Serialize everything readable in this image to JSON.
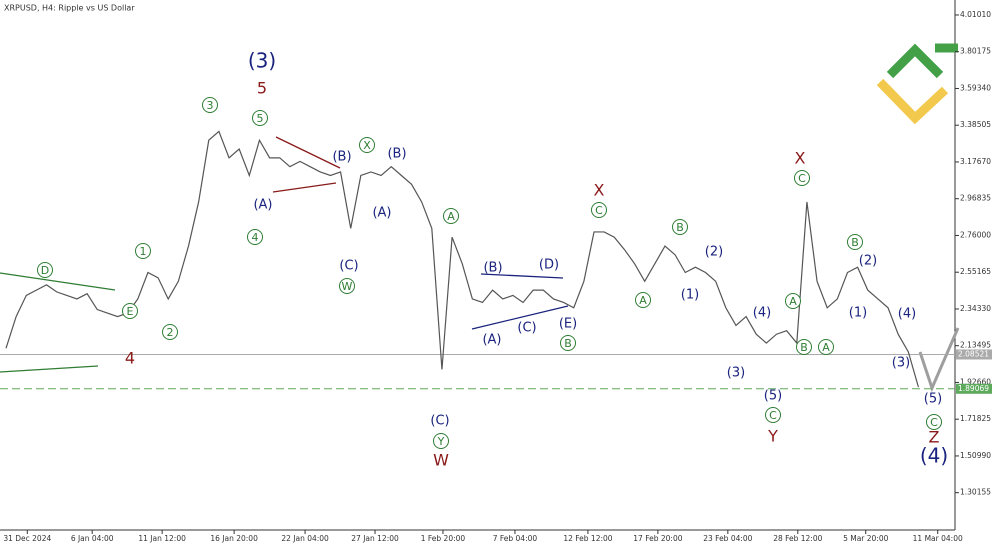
{
  "chart_data": {
    "type": "line",
    "title": "XRPUSD, H4:  Ripple vs US Dollar",
    "values": [
      2.12,
      2.3,
      2.42,
      2.45,
      2.48,
      2.44,
      2.42,
      2.4,
      2.43,
      2.34,
      2.32,
      2.3,
      2.32,
      2.4,
      2.55,
      2.52,
      2.4,
      2.5,
      2.7,
      2.95,
      3.3,
      3.35,
      3.2,
      3.25,
      3.1,
      3.3,
      3.2,
      3.2,
      3.15,
      3.18,
      3.15,
      3.12,
      3.1,
      3.12,
      2.8,
      3.1,
      3.12,
      3.1,
      3.15,
      3.1,
      3.05,
      2.95,
      2.8,
      2.0,
      2.75,
      2.6,
      2.4,
      2.38,
      2.45,
      2.4,
      2.42,
      2.38,
      2.45,
      2.45,
      2.4,
      2.38,
      2.35,
      2.5,
      2.78,
      2.78,
      2.75,
      2.68,
      2.6,
      2.5,
      2.6,
      2.7,
      2.65,
      2.55,
      2.58,
      2.55,
      2.5,
      2.35,
      2.25,
      2.3,
      2.2,
      2.15,
      2.2,
      2.22,
      2.15,
      2.95,
      2.5,
      2.35,
      2.4,
      2.55,
      2.58,
      2.45,
      2.4,
      2.35,
      2.2,
      2.1,
      1.9
    ],
    "color": "#555555",
    "xlim": [
      0,
      94
    ],
    "xticks": [
      {
        "value": 2.1,
        "label": "31 Dec 2024"
      },
      {
        "value": 8.5,
        "label": "6 Jan 04:00"
      },
      {
        "value": 15.4,
        "label": "11 Jan 12:00"
      },
      {
        "value": 22.5,
        "label": "16 Jan 20:00"
      },
      {
        "value": 29.5,
        "label": "22 Jan 04:00"
      },
      {
        "value": 36.4,
        "label": "27 Jan 12:00"
      },
      {
        "value": 43.1,
        "label": "1 Feb 20:00"
      },
      {
        "value": 50.2,
        "label": "7 Feb 04:00"
      },
      {
        "value": 57.4,
        "label": "12 Feb 12:00"
      },
      {
        "value": 64.3,
        "label": "17 Feb 20:00"
      },
      {
        "value": 71.2,
        "label": "23 Feb 04:00"
      },
      {
        "value": 78.1,
        "label": "28 Feb 12:00"
      },
      {
        "value": 84.8,
        "label": "5 Mar 20:00"
      },
      {
        "value": 91.9,
        "label": "11 Mar 04:00"
      }
    ],
    "ylim": [
      1.09,
      4.095
    ],
    "yticks": [
      {
        "value": 4.0101,
        "label": "4.01010"
      },
      {
        "value": 3.80175,
        "label": "3.80175"
      },
      {
        "value": 3.5934,
        "label": "3.59340"
      },
      {
        "value": 3.38505,
        "label": "3.38505"
      },
      {
        "value": 3.1767,
        "label": "3.17670"
      },
      {
        "value": 2.96835,
        "label": "2.96835"
      },
      {
        "value": 2.76,
        "label": "2.76000"
      },
      {
        "value": 2.55165,
        "label": "2.55165"
      },
      {
        "value": 2.3433,
        "label": "2.34330"
      },
      {
        "value": 2.13495,
        "label": "2.13495"
      },
      {
        "value": 1.9266,
        "label": "1.92660"
      },
      {
        "value": 1.71825,
        "label": "1.71825"
      },
      {
        "value": 1.5099,
        "label": "1.50990"
      },
      {
        "value": 1.30155,
        "label": "1.30155"
      }
    ],
    "price_lines": [
      2.08521,
      1.89069
    ],
    "annotations": [
      "(3)",
      "5",
      "3",
      "5",
      "(B)",
      "X",
      "(B)",
      "(A)",
      "4",
      "(A)",
      "(C)",
      "W",
      "D",
      "1",
      "2",
      "E",
      "4",
      "A",
      "(C)",
      "Y",
      "W",
      "(B)",
      "(D)",
      "(C)",
      "(A)",
      "(E)",
      "B",
      "X",
      "C",
      "A",
      "B",
      "(2)",
      "(1)",
      "(4)",
      "(3)",
      "(5)",
      "C",
      "Y",
      "A",
      "B",
      "X",
      "C",
      "A",
      "B",
      "(2)",
      "(1)",
      "(4)",
      "(3)",
      "(5)",
      "C",
      "Z",
      "(4)"
    ]
  }
}
